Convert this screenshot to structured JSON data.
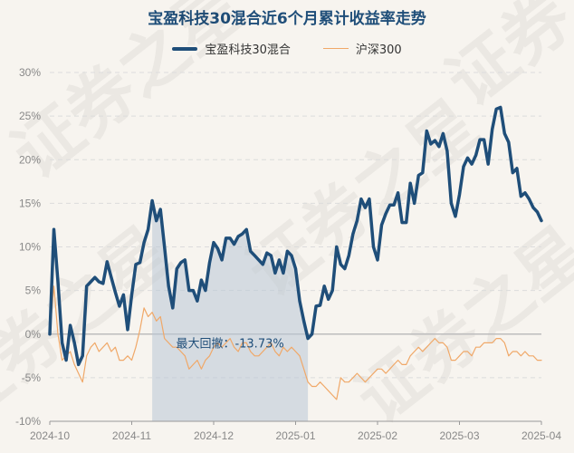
{
  "chart_data": {
    "type": "line",
    "title": "宝盈科技30混合近6个月累计收益率走势",
    "xlabel": "",
    "ylabel": "",
    "ylim": [
      -10,
      30
    ],
    "yticks": [
      "30%",
      "25%",
      "20%",
      "15%",
      "10%",
      "5%",
      "0%",
      "-5%",
      "-10%"
    ],
    "ytick_values": [
      30,
      25,
      20,
      15,
      10,
      5,
      0,
      -5,
      -10
    ],
    "xticks": [
      "2024-10",
      "2024-11",
      "2024-12",
      "2025-01",
      "2025-02",
      "2025-03",
      "2025-04"
    ],
    "grid": true,
    "legend_position": "top-center",
    "series": [
      {
        "name": "宝盈科技30混合",
        "color": "#1f4e79",
        "values": [
          0,
          12,
          6,
          -1,
          -3,
          1,
          -1,
          -3.5,
          -2.5,
          5.5,
          6,
          6.5,
          6,
          5.8,
          8.3,
          6.5,
          4.8,
          3.2,
          4.5,
          0.5,
          4.5,
          8,
          8.2,
          10.5,
          12,
          15.3,
          13,
          14.3,
          10,
          5.5,
          3,
          7.5,
          8.2,
          8.5,
          5,
          5,
          3.8,
          6.2,
          5,
          8.2,
          10.5,
          9.8,
          8.5,
          11,
          11,
          10.3,
          11.2,
          11.5,
          12,
          9.5,
          9,
          8.5,
          8,
          9.3,
          9,
          7,
          8.5,
          7,
          9.5,
          9,
          7.5,
          3.8,
          1.5,
          -0.5,
          0,
          3.2,
          3.3,
          5.5,
          4,
          5,
          10,
          8,
          7.5,
          9,
          11.5,
          13,
          15.5,
          14.5,
          15.5,
          10,
          8.5,
          12.5,
          13.8,
          14.8,
          14.8,
          16.2,
          12.8,
          12.8,
          17.3,
          15,
          18.2,
          18.5,
          23.3,
          21.8,
          22.2,
          21.5,
          23,
          21,
          15,
          13.5,
          16,
          19.2,
          20.2,
          19.5,
          20.5,
          22.3,
          22.3,
          19.5,
          23.5,
          25.8,
          26,
          23,
          22,
          18.5,
          19,
          15.8,
          16.2,
          15.5,
          14.5,
          14,
          13
        ],
        "dates": []
      },
      {
        "name": "沪深300",
        "color": "#f0a868",
        "values": [
          0,
          5.5,
          0,
          -3,
          -2.5,
          -2,
          -3.5,
          -4.5,
          -5.5,
          -2.5,
          -1.5,
          -1,
          -2,
          -1.5,
          -1,
          -2,
          -1.5,
          -3,
          -3,
          -2.5,
          -3,
          -1.5,
          0.5,
          3,
          2,
          2.5,
          1.5,
          2,
          -0.5,
          -1,
          -1.5,
          -1.5,
          -2,
          -2.5,
          -4,
          -3.5,
          -3,
          -4,
          -3,
          -2.5,
          -1.5,
          -1,
          -1.5,
          -1,
          -0.5,
          -1.5,
          -2,
          -1,
          -1,
          -2,
          -2.5,
          -2.5,
          -2,
          -1.5,
          -1,
          -2,
          -2.5,
          -1.5,
          -2,
          -1.5,
          -2,
          -2.5,
          -4,
          -5.5,
          -6,
          -6,
          -5.5,
          -6,
          -6.5,
          -7,
          -7.5,
          -5,
          -5.5,
          -5.5,
          -5,
          -4.5,
          -5,
          -5.5,
          -5,
          -4.5,
          -4,
          -4,
          -4.5,
          -4,
          -3.5,
          -3,
          -3.5,
          -3.5,
          -2.5,
          -2,
          -1.5,
          -2,
          -1.5,
          -1,
          -0.5,
          -1,
          -1,
          -1.5,
          -3,
          -3,
          -2.5,
          -2,
          -2,
          -2.5,
          -1.5,
          -1.5,
          -1,
          -1,
          -1,
          -0.5,
          -0.5,
          -1,
          -2.5,
          -2,
          -2,
          -2.5,
          -2,
          -2.5,
          -2.5,
          -3,
          -3
        ],
        "dates": []
      }
    ],
    "max_drawdown": {
      "label": "最大回撤：-13.73%",
      "start_index": 25,
      "end_index": 63
    }
  },
  "watermark": "证券之星"
}
